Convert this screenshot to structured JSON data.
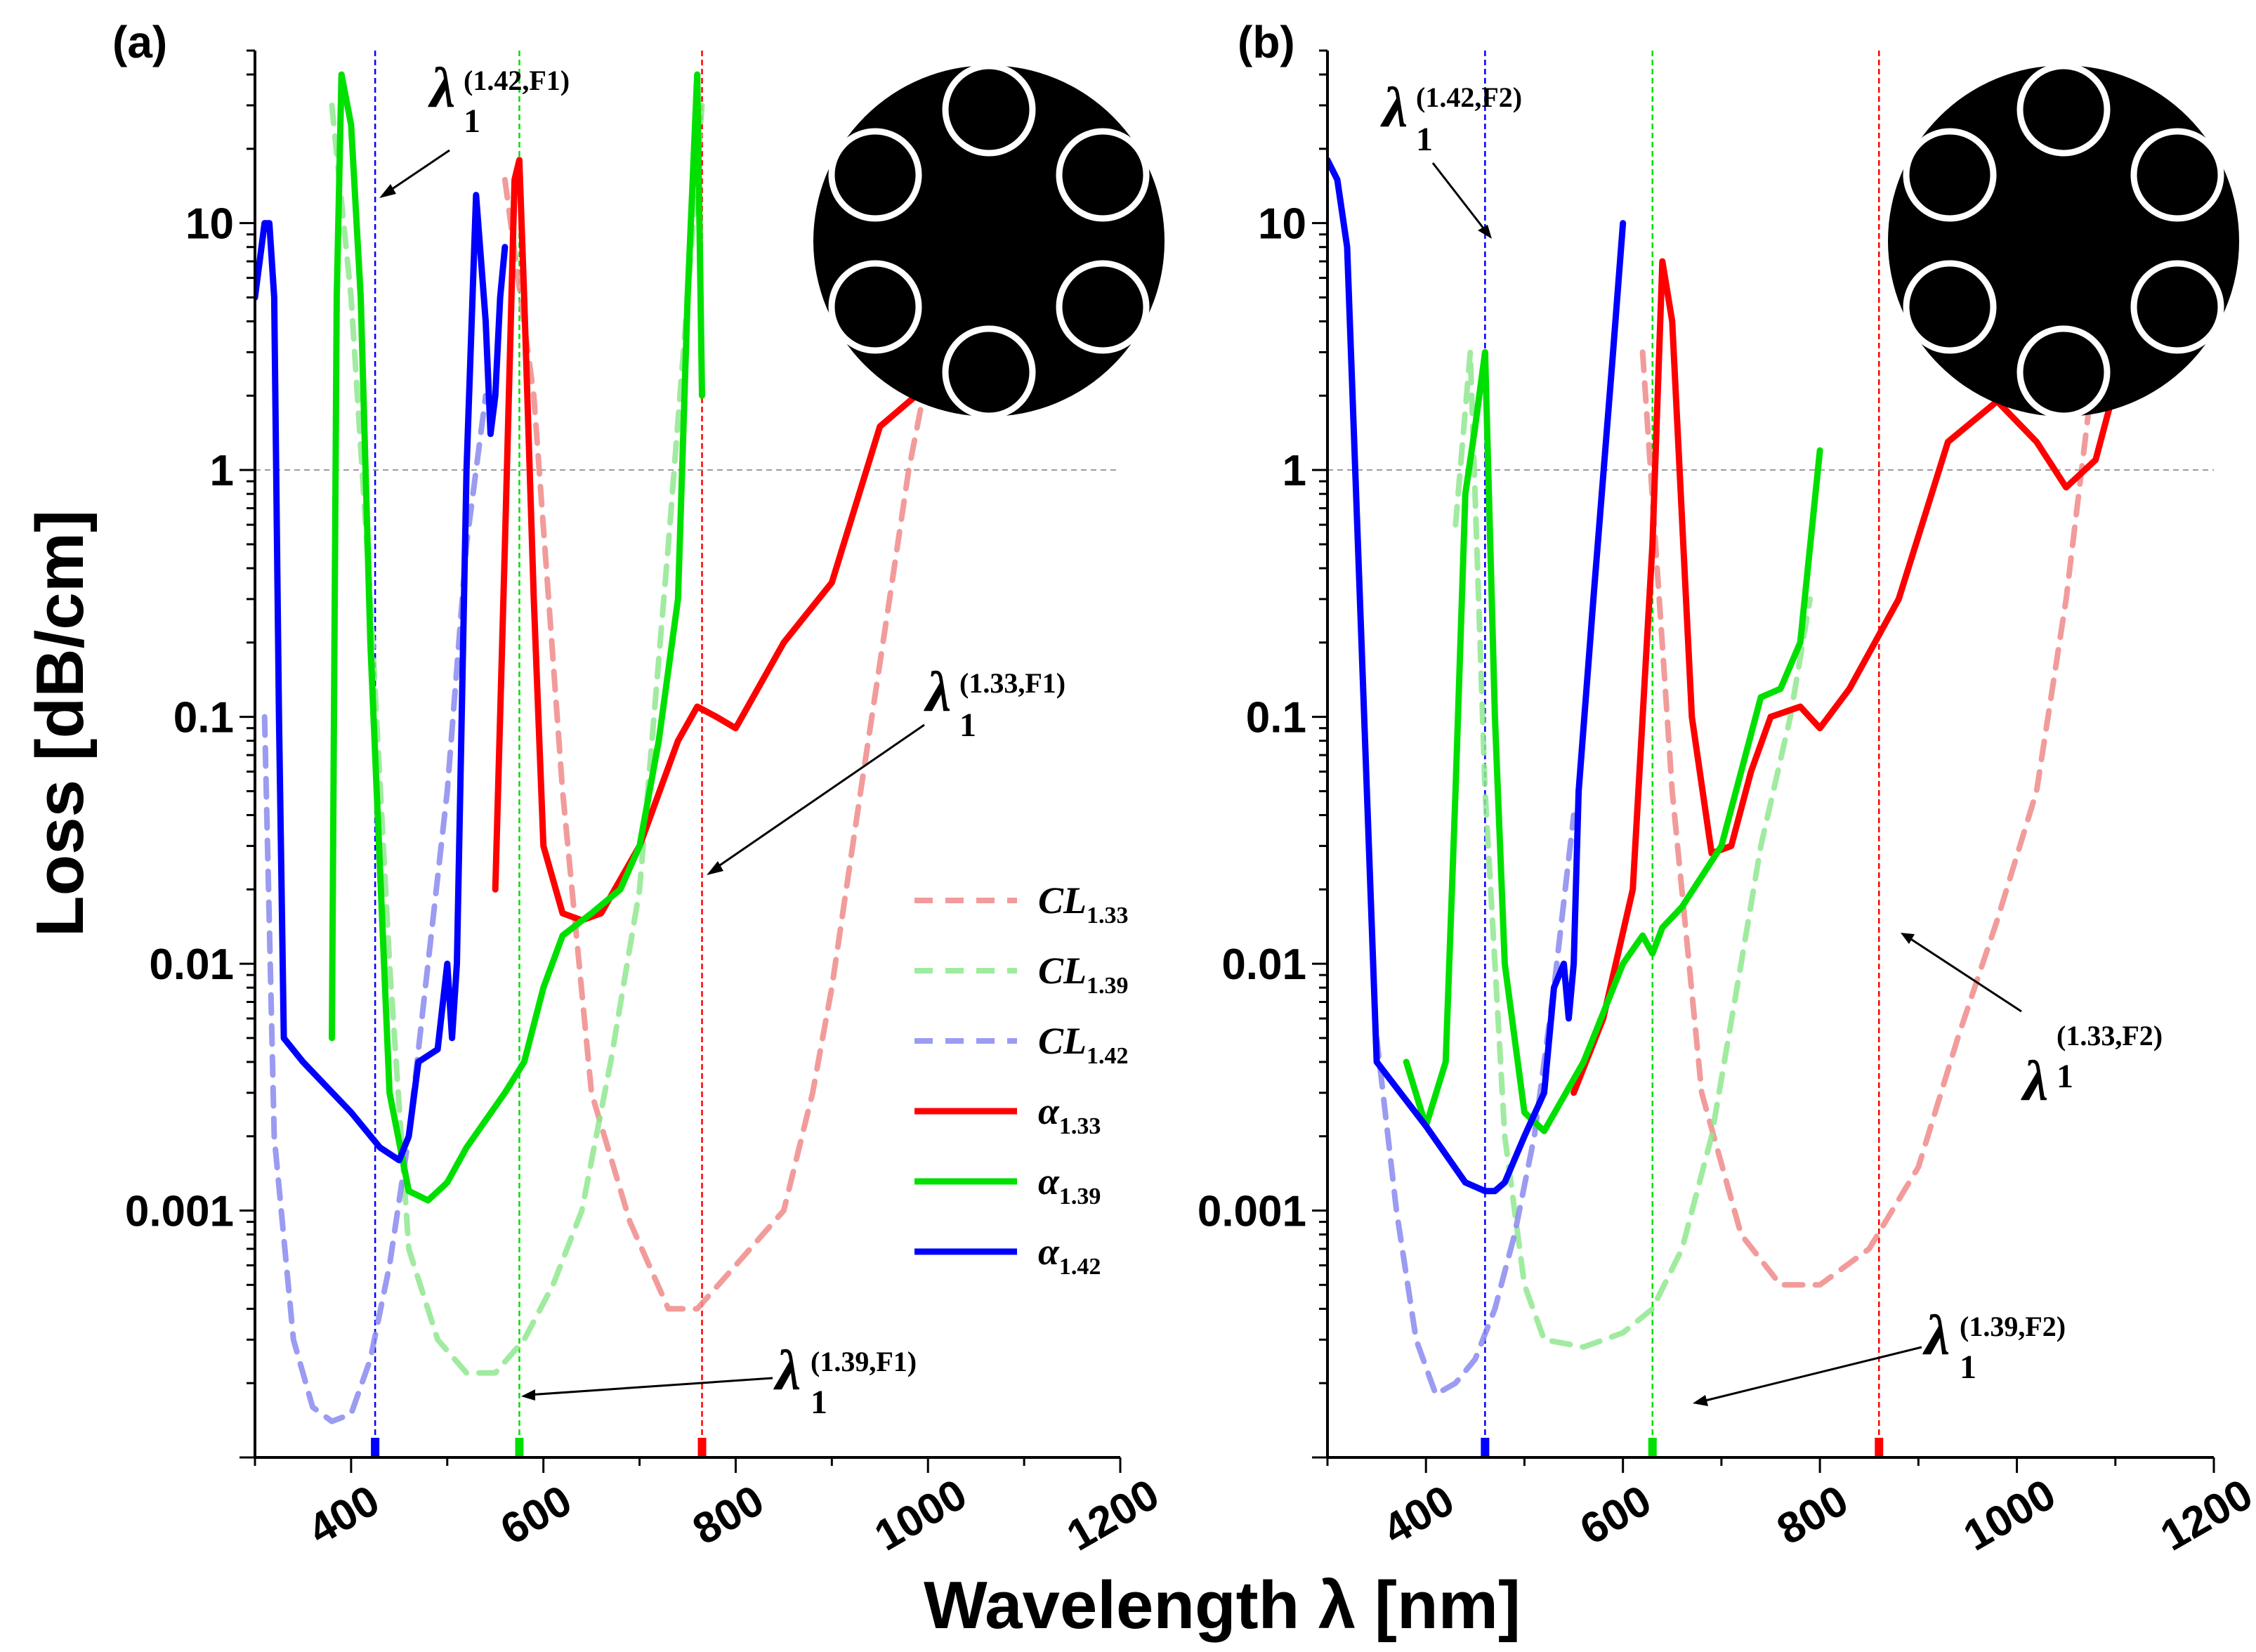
{
  "chart_data": [
    {
      "panel": "(a)",
      "type": "line",
      "xlabel": "Wavelength λ [nm]",
      "ylabel": "Loss [dB/cm]",
      "xlim": [
        300,
        1200
      ],
      "ylim": [
        0.0001,
        50
      ],
      "yscale": "log",
      "xticks": [
        400,
        600,
        800,
        1000,
        1200
      ],
      "yticks": [
        0.001,
        0.01,
        0.1,
        1,
        10
      ],
      "ytick_labels": [
        "0.001",
        "0.01",
        "0.1",
        "1",
        "10"
      ],
      "reference_line_y": 1,
      "legend": [
        "CL1.33",
        "CL1.39",
        "CL1.42",
        "α1.33",
        "α1.39",
        "α1.42"
      ],
      "series": [
        {
          "name": "CL1.33",
          "key": "cl133",
          "style": "dashed",
          "x": [
            560,
            590,
            620,
            650,
            690,
            730,
            760,
            800,
            850,
            880,
            900,
            930,
            960,
            980,
            1000
          ],
          "y": [
            15,
            2,
            0.05,
            0.003,
            0.0009,
            0.0004,
            0.0004,
            0.0006,
            0.001,
            0.003,
            0.008,
            0.05,
            0.3,
            1.0,
            2.5
          ]
        },
        {
          "name": "CL1.39",
          "key": "cl139",
          "style": "dashed",
          "x": [
            380,
            400,
            420,
            440,
            460,
            490,
            520,
            550,
            580,
            610,
            640,
            670,
            700,
            730,
            750,
            765
          ],
          "y": [
            30,
            5,
            0.3,
            0.01,
            0.0007,
            0.0003,
            0.00022,
            0.00022,
            0.0003,
            0.0005,
            0.001,
            0.004,
            0.02,
            0.5,
            5,
            30
          ]
        },
        {
          "name": "CL1.42",
          "key": "cl142",
          "style": "dashed",
          "x": [
            310,
            320,
            340,
            360,
            380,
            400,
            420,
            440,
            460,
            480,
            500,
            520,
            540
          ],
          "y": [
            0.1,
            0.002,
            0.0003,
            0.00016,
            0.00014,
            0.00015,
            0.00025,
            0.0006,
            0.002,
            0.01,
            0.05,
            0.5,
            2
          ]
        },
        {
          "name": "α1.33",
          "key": "a133",
          "style": "solid",
          "x": [
            550,
            560,
            570,
            575,
            580,
            590,
            600,
            620,
            640,
            660,
            700,
            740,
            760,
            780,
            800,
            850,
            900,
            950,
            1000,
            1010
          ],
          "y": [
            0.02,
            0.5,
            15,
            18,
            5,
            0.3,
            0.03,
            0.016,
            0.015,
            0.016,
            0.03,
            0.08,
            0.11,
            0.1,
            0.09,
            0.2,
            0.35,
            1.5,
            2.2,
            2.4
          ]
        },
        {
          "name": "α1.39",
          "key": "a139",
          "style": "solid",
          "x": [
            380,
            385,
            390,
            400,
            410,
            420,
            440,
            460,
            480,
            500,
            520,
            560,
            580,
            600,
            620,
            650,
            680,
            700,
            720,
            740,
            750,
            760,
            765
          ],
          "y": [
            0.005,
            5,
            40,
            25,
            5,
            0.2,
            0.003,
            0.0012,
            0.0011,
            0.0013,
            0.0018,
            0.003,
            0.004,
            0.008,
            0.013,
            0.016,
            0.02,
            0.03,
            0.08,
            0.3,
            5,
            40,
            2
          ]
        },
        {
          "name": "α1.42",
          "key": "a142",
          "style": "solid",
          "x": [
            300,
            310,
            315,
            320,
            325,
            330,
            350,
            400,
            430,
            450,
            460,
            470,
            490,
            500,
            505,
            510,
            520,
            530,
            540,
            545,
            550,
            555,
            560
          ],
          "y": [
            5,
            10,
            10,
            5,
            0.1,
            0.005,
            0.004,
            0.0025,
            0.0018,
            0.0016,
            0.002,
            0.004,
            0.0045,
            0.01,
            0.005,
            0.01,
            1,
            13,
            4,
            1.4,
            2,
            5,
            8
          ]
        }
      ],
      "vlines": [
        {
          "x": 425,
          "color": "#0000ff"
        },
        {
          "x": 575,
          "color": "#00e000"
        },
        {
          "x": 765,
          "color": "#ff0000"
        }
      ],
      "annotations": [
        {
          "base": "λ",
          "sup": "(1.42,F1)",
          "sub": "1"
        },
        {
          "base": "λ",
          "sup": "(1.33,F1)",
          "sub": "1"
        },
        {
          "base": "λ",
          "sup": "(1.39,F1)",
          "sub": "1"
        }
      ],
      "inset_icon": "six-ring-fiber-icon"
    },
    {
      "panel": "(b)",
      "type": "line",
      "xlabel": "Wavelength λ [nm]",
      "ylabel": "Loss [dB/cm]",
      "xlim": [
        300,
        1200
      ],
      "ylim": [
        0.0001,
        50
      ],
      "yscale": "log",
      "xticks": [
        400,
        600,
        800,
        1000,
        1200
      ],
      "yticks": [
        0.001,
        0.01,
        0.1,
        1,
        10
      ],
      "ytick_labels": [
        "0.001",
        "0.01",
        "0.1",
        "1",
        "10"
      ],
      "reference_line_y": 1,
      "series": [
        {
          "name": "CL1.33",
          "key": "cl133",
          "style": "dashed",
          "x": [
            620,
            650,
            680,
            720,
            760,
            800,
            850,
            900,
            940,
            980,
            1020,
            1050,
            1080
          ],
          "y": [
            3,
            0.05,
            0.003,
            0.0008,
            0.0005,
            0.0005,
            0.0007,
            0.0015,
            0.005,
            0.015,
            0.05,
            0.3,
            3
          ]
        },
        {
          "name": "CL1.39",
          "key": "cl139",
          "style": "dashed",
          "x": [
            430,
            445,
            460,
            480,
            500,
            520,
            560,
            600,
            630,
            660,
            690,
            720,
            740,
            770,
            790
          ],
          "y": [
            0.6,
            3,
            0.05,
            0.002,
            0.0005,
            0.0003,
            0.00028,
            0.00032,
            0.0004,
            0.0007,
            0.002,
            0.01,
            0.03,
            0.1,
            0.3
          ]
        },
        {
          "name": "CL1.42",
          "key": "cl142",
          "style": "dashed",
          "x": [
            350,
            370,
            390,
            410,
            430,
            450,
            470,
            490,
            510,
            530,
            550
          ],
          "y": [
            0.005,
            0.001,
            0.0003,
            0.00018,
            0.0002,
            0.00025,
            0.0004,
            0.0008,
            0.002,
            0.008,
            0.04
          ]
        },
        {
          "name": "α1.33",
          "key": "a133",
          "style": "solid",
          "x": [
            550,
            580,
            610,
            630,
            640,
            650,
            670,
            690,
            710,
            730,
            750,
            780,
            800,
            830,
            880,
            930,
            980,
            1020,
            1050,
            1080,
            1100
          ],
          "y": [
            0.003,
            0.006,
            0.02,
            0.5,
            7,
            4,
            0.1,
            0.028,
            0.03,
            0.06,
            0.1,
            0.11,
            0.09,
            0.13,
            0.3,
            1.3,
            1.9,
            1.3,
            0.85,
            1.1,
            2.2
          ]
        },
        {
          "name": "α1.39",
          "key": "a139",
          "style": "solid",
          "x": [
            380,
            400,
            420,
            430,
            440,
            450,
            460,
            470,
            480,
            500,
            520,
            560,
            600,
            620,
            630,
            640,
            660,
            700,
            740,
            760,
            780,
            800
          ],
          "y": [
            0.004,
            0.0022,
            0.004,
            0.05,
            0.8,
            1.5,
            3,
            0.1,
            0.01,
            0.0025,
            0.0021,
            0.004,
            0.01,
            0.013,
            0.011,
            0.014,
            0.017,
            0.03,
            0.12,
            0.13,
            0.2,
            1.2
          ]
        },
        {
          "name": "α1.42",
          "key": "a142",
          "style": "solid",
          "x": [
            300,
            310,
            320,
            340,
            350,
            400,
            440,
            460,
            470,
            480,
            500,
            520,
            530,
            540,
            545,
            550,
            555,
            570,
            590,
            600
          ],
          "y": [
            18,
            15,
            8,
            0.05,
            0.004,
            0.0022,
            0.0013,
            0.0012,
            0.0012,
            0.0013,
            0.002,
            0.003,
            0.008,
            0.01,
            0.006,
            0.01,
            0.05,
            0.3,
            3,
            10
          ]
        }
      ],
      "vlines": [
        {
          "x": 460,
          "color": "#0000ff"
        },
        {
          "x": 630,
          "color": "#00e000"
        },
        {
          "x": 860,
          "color": "#ff0000"
        }
      ],
      "annotations": [
        {
          "base": "λ",
          "sup": "(1.42,F2)",
          "sub": "1"
        },
        {
          "base": "λ",
          "sup": "(1.33,F2)",
          "sub": "1"
        },
        {
          "base": "λ",
          "sup": "(1.39,F2)",
          "sub": "1"
        }
      ],
      "inset_icon": "six-ring-fiber-icon"
    }
  ],
  "colors": {
    "red": "#ff0000",
    "green": "#00e000",
    "blue": "#0000ff",
    "cl133": "#f08a8a",
    "cl139": "#8fe88f",
    "cl142": "#8a8af0"
  },
  "legend_labels": {
    "cl133": {
      "base": "CL",
      "sub": "1.33"
    },
    "cl139": {
      "base": "CL",
      "sub": "1.39"
    },
    "cl142": {
      "base": "CL",
      "sub": "1.42"
    },
    "a133": {
      "base": "α",
      "sub": "1.33"
    },
    "a139": {
      "base": "α",
      "sub": "1.39"
    },
    "a142": {
      "base": "α",
      "sub": "1.42"
    }
  }
}
